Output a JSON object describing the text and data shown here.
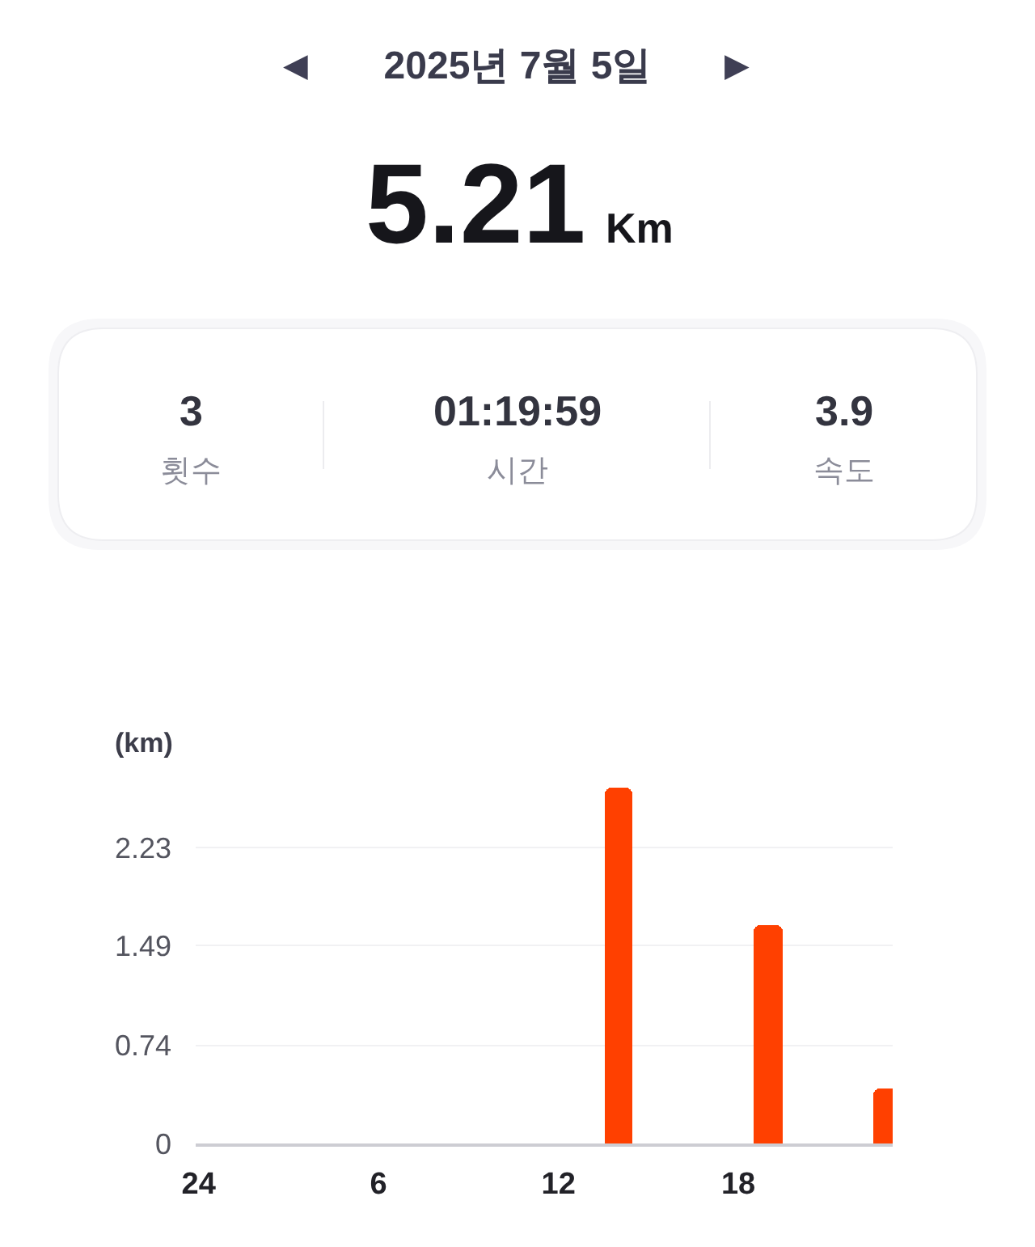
{
  "chart_data": {
    "type": "bar",
    "title": "2025년 7월 5일",
    "subtitle": "5.21 Km",
    "ylabel": "(km)",
    "annotations": [
      "◀",
      "▶",
      "3",
      "횟수",
      "01:19:59",
      "시간",
      "3.9",
      "속도"
    ],
    "categories": [
      "24",
      null,
      null,
      null,
      null,
      null,
      "6",
      null,
      null,
      null,
      null,
      null,
      "12",
      null,
      null,
      null,
      null,
      null,
      "18",
      null,
      null,
      null,
      null,
      null
    ],
    "values": [
      null,
      null,
      null,
      null,
      null,
      null,
      null,
      null,
      null,
      null,
      null,
      null,
      null,
      null,
      2.68,
      null,
      null,
      null,
      null,
      1.65,
      null,
      null,
      null,
      0.42
    ],
    "color": "#ff4000",
    "ylim": [
      0,
      2.68
    ],
    "yticks": [
      0,
      0.74,
      1.49,
      2.23
    ],
    "grid": "y"
  }
}
